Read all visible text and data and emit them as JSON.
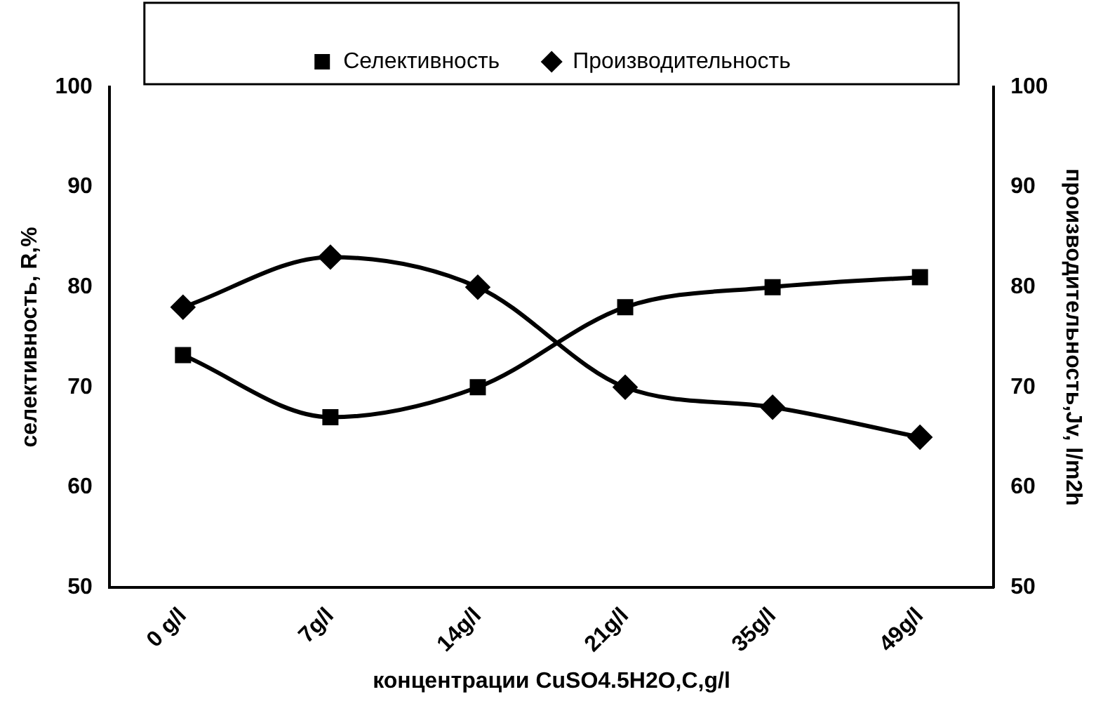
{
  "chart_data": {
    "type": "line",
    "xlabel": "концентрации CuSO4.5H2O,C,g/l",
    "ylabel": "селективность, R,%",
    "y2label": "производительность,Jv, l/m2h",
    "categories": [
      "0 g/l",
      "7g/l",
      "14g/l",
      "21g/l",
      "35g/l",
      "49g/l"
    ],
    "series": [
      {
        "name": "Селективность",
        "color": "#000000",
        "marker": "square",
        "values": [
          73.2,
          67,
          70,
          78,
          80,
          81
        ]
      },
      {
        "name": "Производительность",
        "color": "#000000",
        "marker": "diamond",
        "axis": "y2",
        "values": [
          78,
          83,
          80,
          70,
          68,
          65
        ]
      }
    ],
    "ylim": [
      50,
      100
    ],
    "yticks": [
      50,
      60,
      70,
      80,
      90,
      100
    ],
    "y2lim": [
      50,
      100
    ],
    "y2ticks": [
      50,
      60,
      70,
      80,
      90,
      100
    ],
    "grid": false,
    "legend": "top",
    "line_style": "solid"
  }
}
